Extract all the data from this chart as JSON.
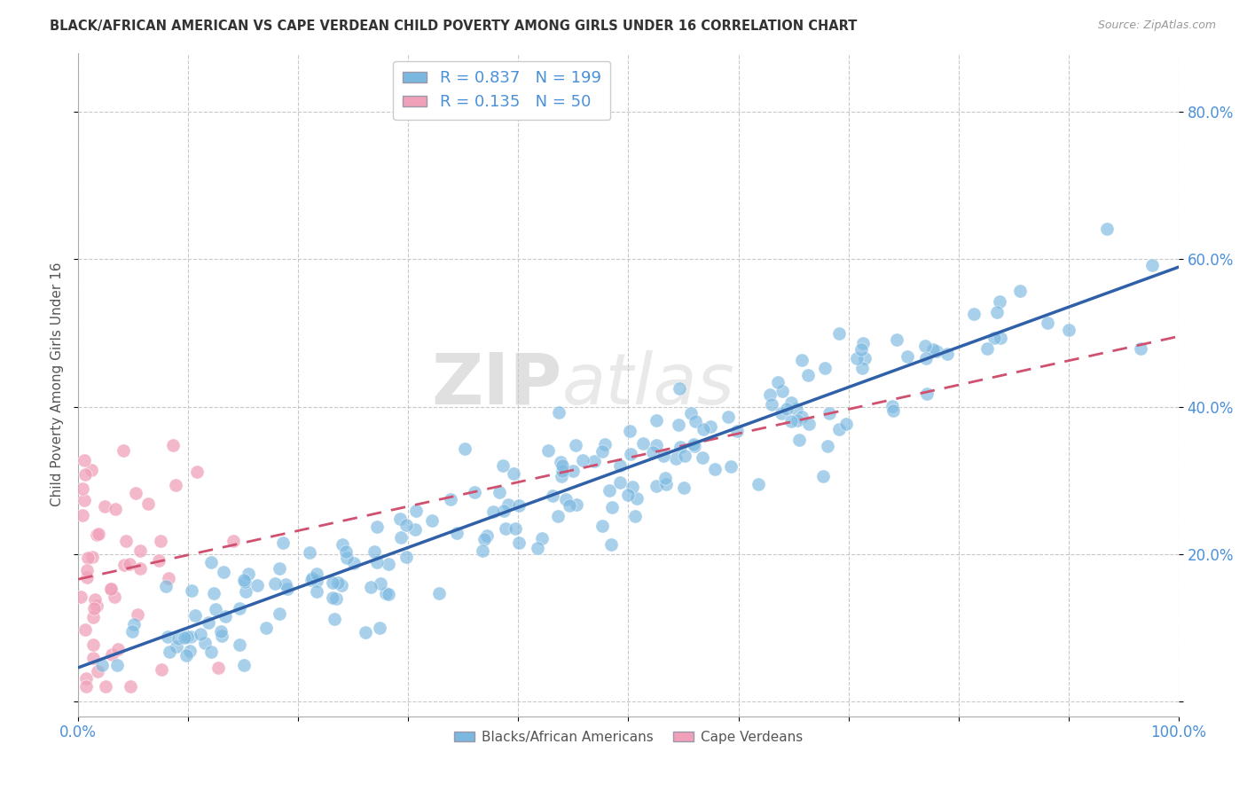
{
  "title": "BLACK/AFRICAN AMERICAN VS CAPE VERDEAN CHILD POVERTY AMONG GIRLS UNDER 16 CORRELATION CHART",
  "source": "Source: ZipAtlas.com",
  "ylabel": "Child Poverty Among Girls Under 16",
  "xlim": [
    0,
    1.0
  ],
  "ylim": [
    -0.02,
    0.88
  ],
  "x_ticks": [
    0.0,
    0.1,
    0.2,
    0.3,
    0.4,
    0.5,
    0.6,
    0.7,
    0.8,
    0.9,
    1.0
  ],
  "y_ticks": [
    0.0,
    0.2,
    0.4,
    0.6,
    0.8
  ],
  "x_tick_labels": [
    "0.0%",
    "",
    "",
    "",
    "",
    "",
    "",
    "",
    "",
    "",
    "100.0%"
  ],
  "y_tick_labels": [
    "",
    "20.0%",
    "40.0%",
    "60.0%",
    "80.0%"
  ],
  "blue_color": "#7ab8e0",
  "pink_color": "#f0a0b8",
  "blue_line_color": "#3060a8",
  "pink_line_color": "#d05070",
  "R_blue": 0.837,
  "N_blue": 199,
  "R_pink": 0.135,
  "N_pink": 50,
  "watermark_zip": "ZIP",
  "watermark_atlas": "atlas",
  "legend_label_blue": "Blacks/African Americans",
  "legend_label_pink": "Cape Verdeans",
  "blue_seed": 12,
  "pink_seed": 99,
  "background_color": "#ffffff",
  "grid_color": "#bbbbbb",
  "title_color": "#333333",
  "axis_color": "#4a90d9",
  "label_color": "#555555"
}
